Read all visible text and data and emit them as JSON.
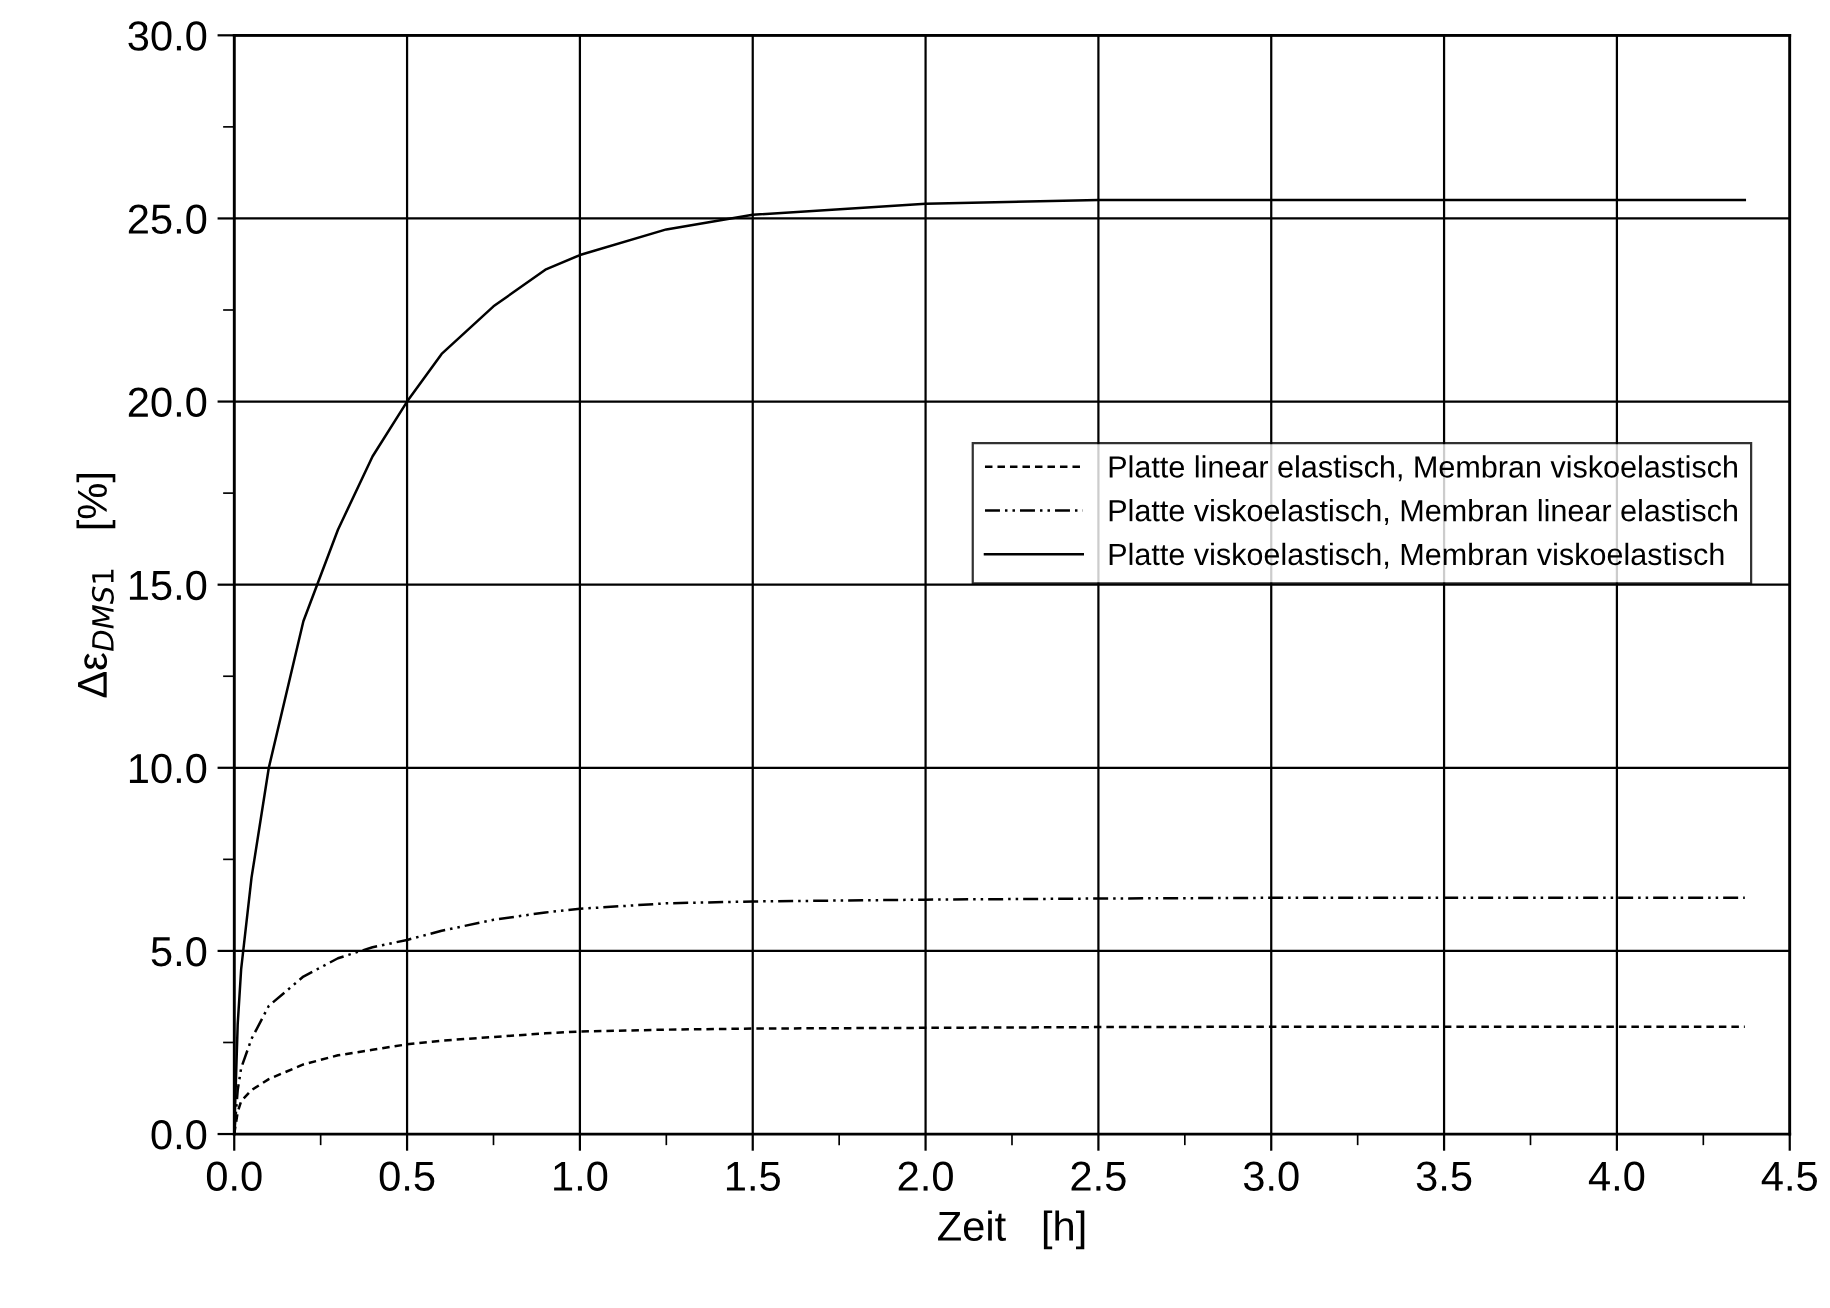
{
  "chart_data": {
    "type": "line",
    "xlabel": "Zeit   [h]",
    "ylabel": "Δε$_{DMS1}$   [%]",
    "xlim": [
      0,
      4.5
    ],
    "ylim": [
      0,
      30
    ],
    "xticks": [
      {
        "value": 0,
        "label": "0.0"
      },
      {
        "value": 0.5,
        "label": "0.5"
      },
      {
        "value": 1,
        "label": "1.0"
      },
      {
        "value": 1.5,
        "label": "1.5"
      },
      {
        "value": 2,
        "label": "2.0"
      },
      {
        "value": 2.5,
        "label": "2.5"
      },
      {
        "value": 3,
        "label": "3.0"
      },
      {
        "value": 3.5,
        "label": "3.5"
      },
      {
        "value": 4,
        "label": "4.0"
      },
      {
        "value": 4.5,
        "label": "4.5"
      }
    ],
    "yticks": [
      {
        "value": 0,
        "label": "0.0"
      },
      {
        "value": 5,
        "label": "5.0"
      },
      {
        "value": 10,
        "label": "10.0"
      },
      {
        "value": 15,
        "label": "15.0"
      },
      {
        "value": 20,
        "label": "20.0"
      },
      {
        "value": 25,
        "label": "25.0"
      },
      {
        "value": 30,
        "label": "30.0"
      }
    ],
    "grid": true,
    "legend": "right",
    "marker": "none",
    "x": [
      0,
      0.01,
      0.02,
      0.05,
      0.1,
      0.2,
      0.3,
      0.4,
      0.5,
      0.6,
      0.75,
      0.9,
      1.0,
      1.25,
      1.5,
      2.0,
      2.5,
      3.0,
      3.5,
      4.0,
      4.37
    ],
    "series": [
      {
        "name": "Platte linear elastisch, Membran viskoelastisch",
        "color": "#000000",
        "line_style": "dashed",
        "values": [
          0,
          0.6,
          0.9,
          1.2,
          1.5,
          1.9,
          2.15,
          2.3,
          2.45,
          2.55,
          2.65,
          2.75,
          2.8,
          2.85,
          2.88,
          2.9,
          2.92,
          2.93,
          2.93,
          2.93,
          2.93
        ]
      },
      {
        "name": "Platte viskoelastisch, Membran linear elastisch",
        "color": "#000000",
        "line_style": "dashdot",
        "values": [
          0,
          1.2,
          1.8,
          2.6,
          3.5,
          4.3,
          4.8,
          5.1,
          5.3,
          5.55,
          5.85,
          6.05,
          6.15,
          6.3,
          6.35,
          6.4,
          6.43,
          6.45,
          6.45,
          6.45,
          6.45
        ]
      },
      {
        "name": "Platte viskoelastisch, Membran viskoelastisch",
        "color": "#000000",
        "line_style": "solid",
        "values": [
          0,
          3.0,
          4.5,
          7.0,
          10.0,
          14.0,
          16.5,
          18.5,
          20.0,
          21.3,
          22.6,
          23.6,
          24.0,
          24.7,
          25.1,
          25.4,
          25.5,
          25.5,
          25.5,
          25.5,
          25.5
        ]
      }
    ]
  }
}
